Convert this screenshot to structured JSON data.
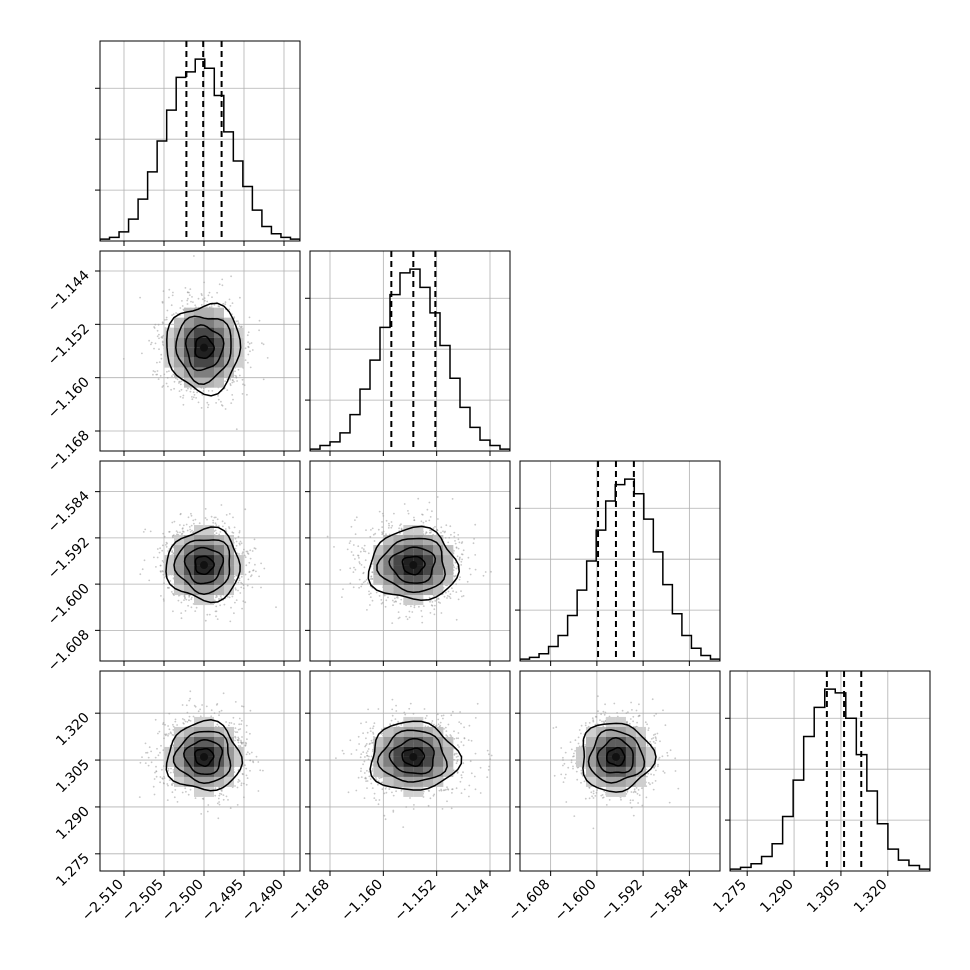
{
  "chart_data": {
    "type": "corner",
    "title": "",
    "parameters": [
      {
        "xlim": [
          -2.513,
          -2.488
        ],
        "ticks": [
          -2.51,
          -2.505,
          -2.5,
          -2.495,
          -2.49
        ],
        "tick_labels": [
          "−2.510",
          "−2.505",
          "−2.500",
          "−2.495",
          "−2.490"
        ],
        "quantiles": [
          -2.5022,
          -2.5001,
          -2.4978
        ],
        "center": -2.5,
        "sigma": 0.0023
      },
      {
        "xlim": [
          -1.171,
          -1.141
        ],
        "ticks": [
          -1.168,
          -1.16,
          -1.152,
          -1.144
        ],
        "tick_labels": [
          "−1.168",
          "−1.160",
          "−1.152",
          "−1.144"
        ],
        "quantiles": [
          -1.1588,
          -1.1555,
          -1.1522
        ],
        "center": -1.1555,
        "sigma": 0.0033
      },
      {
        "xlim": [
          -1.6133,
          -1.5787
        ],
        "ticks": [
          -1.608,
          -1.6,
          -1.592,
          -1.584
        ],
        "tick_labels": [
          "−1.608",
          "−1.600",
          "−1.592",
          "−1.584"
        ],
        "quantiles": [
          -1.5998,
          -1.5967,
          -1.5936
        ],
        "center": -1.5967,
        "sigma": 0.0031
      },
      {
        "xlim": [
          1.2695,
          1.3335
        ],
        "ticks": [
          1.275,
          1.29,
          1.305,
          1.32
        ],
        "tick_labels": [
          "1.275",
          "1.290",
          "1.305",
          "1.320"
        ],
        "quantiles": [
          1.3005,
          1.306,
          1.3115
        ],
        "center": 1.306,
        "sigma": 0.0055
      }
    ],
    "histograms": [
      [
        0.01,
        0.02,
        0.05,
        0.12,
        0.23,
        0.38,
        0.55,
        0.72,
        0.9,
        0.93,
        1.0,
        0.95,
        0.8,
        0.6,
        0.44,
        0.3,
        0.17,
        0.08,
        0.04,
        0.02,
        0.01
      ],
      [
        0.01,
        0.03,
        0.05,
        0.1,
        0.2,
        0.34,
        0.5,
        0.68,
        0.86,
        0.98,
        1.0,
        0.9,
        0.76,
        0.58,
        0.4,
        0.24,
        0.13,
        0.06,
        0.03,
        0.01
      ],
      [
        0.01,
        0.02,
        0.04,
        0.08,
        0.14,
        0.25,
        0.39,
        0.55,
        0.72,
        0.88,
        0.97,
        1.0,
        0.92,
        0.78,
        0.6,
        0.42,
        0.26,
        0.14,
        0.07,
        0.03,
        0.01
      ],
      [
        0.01,
        0.02,
        0.04,
        0.08,
        0.15,
        0.3,
        0.5,
        0.74,
        0.9,
        1.0,
        0.98,
        0.84,
        0.64,
        0.44,
        0.26,
        0.12,
        0.06,
        0.03,
        0.01
      ]
    ],
    "grid": true,
    "legend": "none"
  }
}
